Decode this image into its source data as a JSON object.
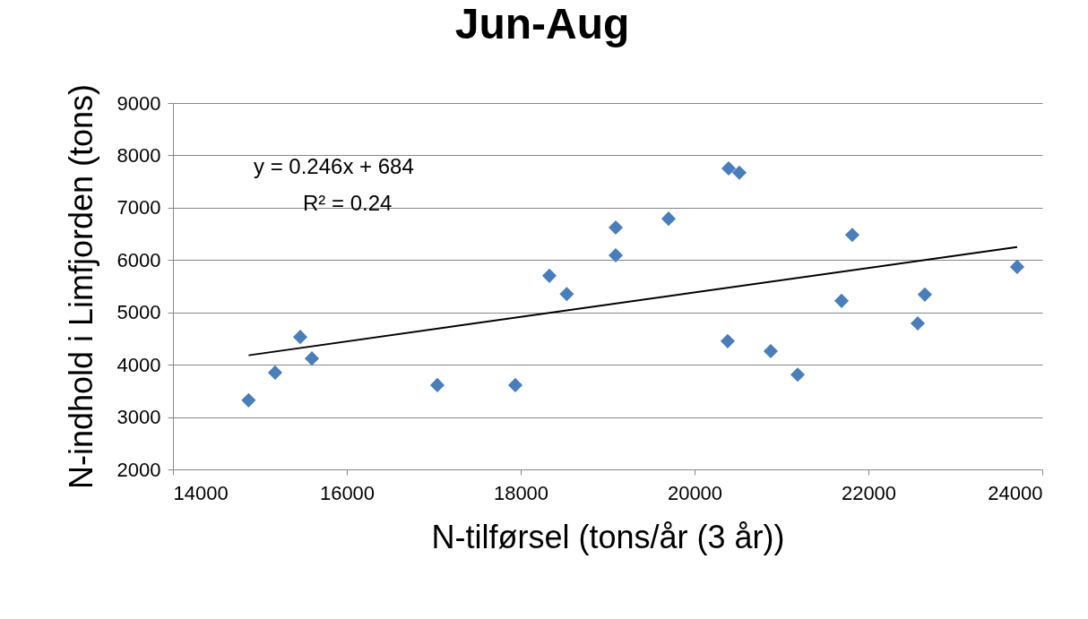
{
  "chart_data": {
    "type": "scatter",
    "title": "Jun-Aug",
    "xlabel": "N-tilførsel (tons/år (3 år))",
    "ylabel": "N-indhold i Limfjorden (tons)",
    "xlim": [
      14000,
      24000
    ],
    "xticks": [
      14000,
      16000,
      18000,
      20000,
      22000,
      24000
    ],
    "ylim": [
      2000,
      9000
    ],
    "yticks": [
      2000,
      3000,
      4000,
      5000,
      6000,
      7000,
      8000,
      9000
    ],
    "grid": "y",
    "annotations": [
      "y = 0.246x + 684",
      "R² = 0.24"
    ],
    "series": [
      {
        "color": "#4a7ebb",
        "marker": "diamond",
        "x": [
          14870,
          15175,
          15464,
          15598,
          17041,
          17938,
          18330,
          18530,
          19093,
          19093,
          19701,
          20392,
          20515,
          20381,
          20876,
          21186,
          21691,
          21814,
          22567,
          22649,
          23711
        ],
        "values": [
          3320,
          3850,
          4530,
          4120,
          3610,
          3610,
          5700,
          5350,
          6620,
          6090,
          6790,
          7750,
          7670,
          4450,
          4260,
          3810,
          5220,
          6480,
          4790,
          5340,
          5870
        ]
      },
      {
        "type": "line",
        "color": "#000000",
        "x": [
          14870,
          23711
        ],
        "values": [
          4180,
          6250
        ]
      }
    ]
  }
}
